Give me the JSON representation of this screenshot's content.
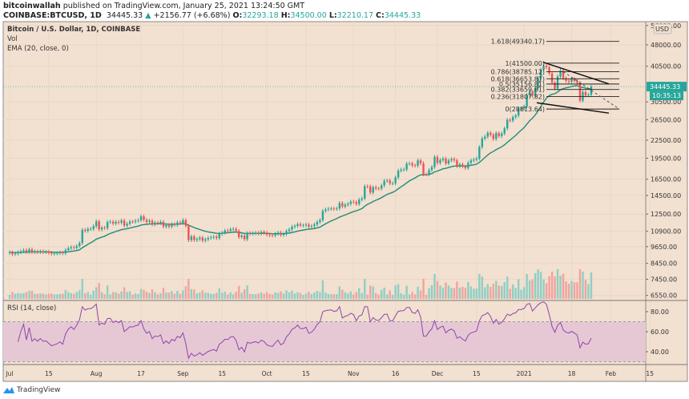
{
  "header": {
    "author": "bitcoinwallah",
    "published": "published on TradingView.com, January 25, 2021 13:24:50 GMT",
    "symbol": "COINBASE:BTCUSD, 1D",
    "last": "34445.33",
    "change_arrow": "▲",
    "change": "+2156.77 (+6.68%)",
    "o_label": "O:",
    "o": "32293.18",
    "h_label": "H:",
    "h": "34500.00",
    "l_label": "L:",
    "l": "32210.17",
    "c_label": "C:",
    "c": "34445.33"
  },
  "legend": {
    "title": "Bitcoin / U.S. Dollar, 1D, COINBASE",
    "vol": "Vol",
    "ema": "EMA (20, close, 0)",
    "rsi": "RSI (14, close)"
  },
  "price_axis": {
    "unit": "USD",
    "ticks": [
      56000,
      48000,
      40500,
      30500,
      26500,
      22500,
      19500,
      16500,
      14500,
      12500,
      10900,
      9650,
      8450,
      7450,
      6550
    ],
    "tick_labels": [
      "56000.00",
      "48000.00",
      "40500.00",
      "30500.00",
      "26500.00",
      "22500.00",
      "19500.00",
      "16500.00",
      "14500.00",
      "12500.00",
      "10900.00",
      "9650.00",
      "8450.00",
      "7450.00",
      "6550.00"
    ],
    "last_price_label": "34445.33",
    "countdown": "10:35:13",
    "scale": "log"
  },
  "rsi_axis": {
    "ticks": [
      80,
      60,
      40
    ],
    "tick_labels": [
      "80.00",
      "60.00",
      "40.00"
    ],
    "band": [
      30,
      70
    ]
  },
  "time_axis": {
    "labels": [
      "Jul",
      "15",
      "Aug",
      "17",
      "Sep",
      "15",
      "Oct",
      "15",
      "Nov",
      "16",
      "Dec",
      "15",
      "2021",
      "18",
      "Feb",
      "15"
    ],
    "label_days": [
      0,
      14,
      31,
      47,
      62,
      76,
      92,
      106,
      123,
      138,
      153,
      167,
      184,
      201,
      215,
      229
    ]
  },
  "fib": [
    {
      "label": "1.618(49340.17)",
      "price": 49340.17
    },
    {
      "label": "1(41500.00)",
      "price": 41500
    },
    {
      "label": "0.786(38785.12)",
      "price": 38785.12
    },
    {
      "label": "0.618(36653.81)",
      "price": 36653.81
    },
    {
      "label": "0.5(35156.81)",
      "price": 35156.81
    },
    {
      "label": "0.382(33659.81)",
      "price": 33659.81
    },
    {
      "label": "0.236(31807.82)",
      "price": 31807.82
    },
    {
      "label": "0(28813.64)",
      "price": 28813.64
    }
  ],
  "colors": {
    "up": "#26a69a",
    "down": "#ef5350",
    "ema": "#1e8c76",
    "rsi": "#8e44ad",
    "bg": "#f2e0d0",
    "rsi_band": "#e6c8d4"
  },
  "chart_data": {
    "type": "candlestick",
    "start": "2020-07-01",
    "interval": "1D",
    "closes": [
      9230,
      9090,
      9140,
      9230,
      9300,
      9380,
      9250,
      9440,
      9240,
      9290,
      9240,
      9300,
      9240,
      9250,
      9190,
      9130,
      9150,
      9170,
      9210,
      9160,
      9390,
      9530,
      9610,
      9560,
      9700,
      9930,
      11030,
      10940,
      11110,
      11110,
      11350,
      11800,
      11070,
      11230,
      11190,
      11740,
      11770,
      11600,
      11750,
      11680,
      11880,
      11410,
      11580,
      11780,
      11770,
      11860,
      11910,
      12280,
      11950,
      11750,
      11860,
      11520,
      11680,
      11650,
      11750,
      11320,
      11460,
      11320,
      11540,
      11470,
      11710,
      11650,
      11920,
      11390,
      10170,
      10470,
      10170,
      10250,
      10370,
      10130,
      10230,
      10340,
      10390,
      10440,
      10330,
      10680,
      10790,
      10960,
      10940,
      11080,
      11110,
      10930,
      10420,
      10540,
      10240,
      10740,
      10690,
      10730,
      10770,
      10700,
      10840,
      10780,
      10620,
      10570,
      10550,
      10680,
      10790,
      10600,
      10670,
      10920,
      11060,
      11300,
      11380,
      11540,
      11430,
      11430,
      11500,
      11320,
      11370,
      11510,
      11750,
      11920,
      12820,
      12970,
      13030,
      13070,
      13030,
      13080,
      13650,
      13280,
      13460,
      13560,
      13800,
      13760,
      13550,
      14020,
      14150,
      15590,
      15580,
      14830,
      15480,
      15330,
      15310,
      15700,
      16290,
      16330,
      15960,
      15960,
      16730,
      17660,
      17800,
      17820,
      18660,
      18700,
      18420,
      18370,
      19160,
      18730,
      17150,
      17140,
      17730,
      18180,
      19700,
      18780,
      19220,
      19450,
      18700,
      19150,
      19360,
      19170,
      18320,
      18550,
      18250,
      18040,
      18800,
      19150,
      19280,
      19440,
      21310,
      22810,
      23140,
      23860,
      23480,
      22720,
      23800,
      23240,
      23730,
      24710,
      26440,
      26280,
      27040,
      27360,
      28890,
      28950,
      29400,
      32200,
      33000,
      32020,
      34030,
      36830,
      39400,
      40580,
      40160,
      38260,
      35550,
      33920,
      37330,
      39170,
      36830,
      36070,
      35800,
      36600,
      36050,
      35500,
      30820,
      33000,
      32100,
      32280,
      34445.33
    ]
  }
}
